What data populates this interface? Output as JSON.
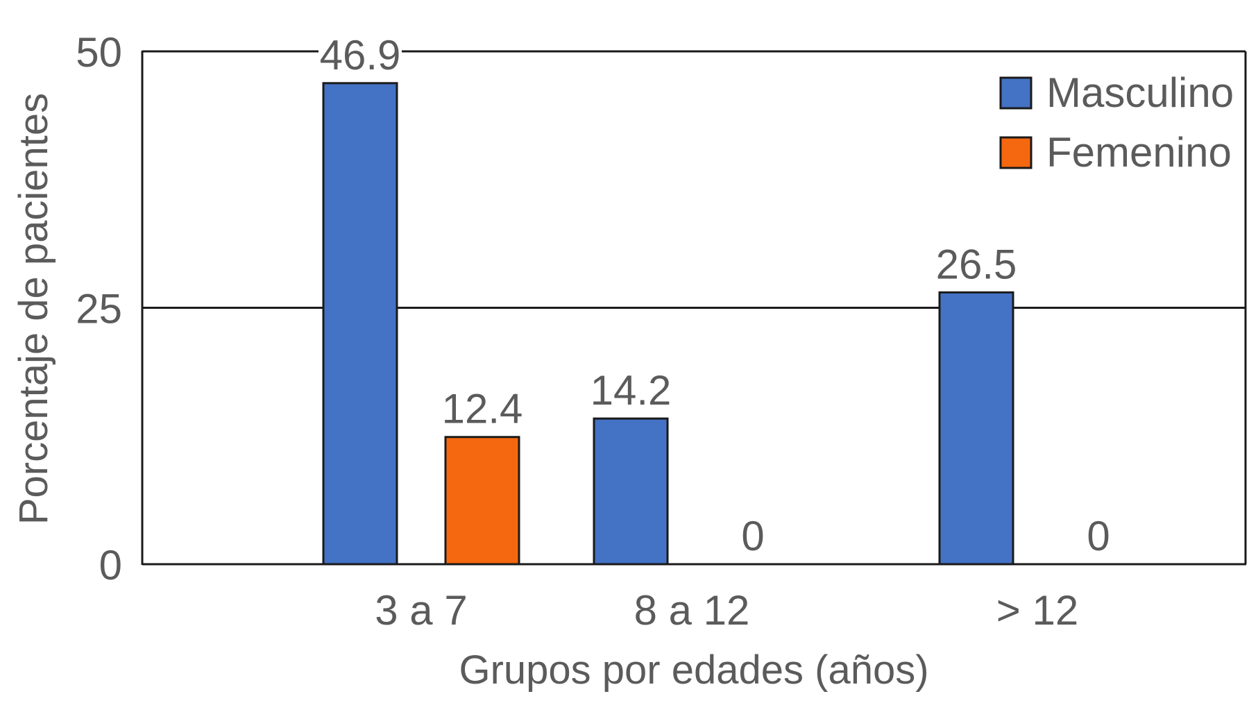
{
  "chart_data": {
    "type": "bar",
    "categories": [
      "3 a 7",
      "8 a 12",
      "> 12"
    ],
    "series": [
      {
        "name": "Masculino",
        "values": [
          46.9,
          14.2,
          26.5
        ],
        "color": "#4472c4"
      },
      {
        "name": "Femenino",
        "values": [
          12.4,
          0,
          0
        ],
        "color": "#f5680f"
      }
    ],
    "data_labels": [
      [
        "46.9",
        "14.2",
        "26.5"
      ],
      [
        "12.4",
        "0",
        "0"
      ]
    ],
    "xlabel": "Grupos por edades (años)",
    "ylabel": "Porcentaje  de pacientes",
    "ylim": [
      0,
      50
    ],
    "yticks": [
      0,
      25,
      50
    ],
    "grid": true,
    "legend_position": "top-right"
  }
}
